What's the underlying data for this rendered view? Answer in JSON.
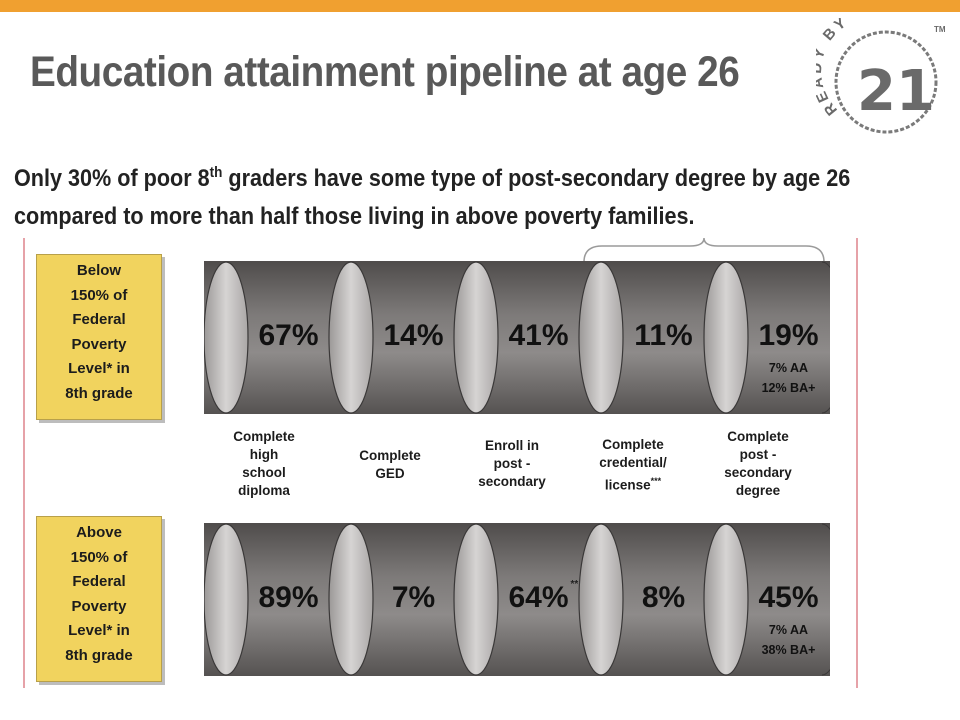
{
  "slide": {
    "title": "Education attainment pipeline at age 26",
    "subtitle_a": "Only 30% of poor 8",
    "subtitle_sup": "th",
    "subtitle_b": " graders have some type of post-secondary degree by age 26 compared to more than half those living in above poverty families."
  },
  "logo": {
    "word": "READY BY",
    "number": "21",
    "mark": "TM"
  },
  "colors": {
    "accent_bar": "#f0a030",
    "group_box": "#f1d35e",
    "cylinder": "#6e6b6a",
    "divider": "#e6a2a8"
  },
  "stages": [
    {
      "lines": "Complete\nhigh\nschool\ndiploma",
      "sup": ""
    },
    {
      "lines": "Complete\nGED",
      "sup": ""
    },
    {
      "lines": "Enroll in\npost -\nsecondary",
      "sup": ""
    },
    {
      "lines": "Complete\ncredential/\nlicense",
      "sup": "***"
    },
    {
      "lines": "Complete\npost -\nsecondary\ndegree",
      "sup": ""
    }
  ],
  "groups": [
    {
      "label": "Below\n150% of\nFederal\nPoverty\nLevel* in\n8th grade",
      "values": [
        {
          "pct": "67%",
          "value": 67
        },
        {
          "pct": "14%",
          "value": 14
        },
        {
          "pct": "41%",
          "value": 41
        },
        {
          "pct": "11%",
          "value": 11
        },
        {
          "pct": "19%",
          "value": 19,
          "detail": [
            "7% AA",
            "12% BA+"
          ]
        }
      ]
    },
    {
      "label": "Above\n150% of\nFederal\nPoverty\nLevel* in\n8th grade",
      "values": [
        {
          "pct": "89%",
          "value": 89
        },
        {
          "pct": "7%",
          "value": 7
        },
        {
          "pct": "64%",
          "value": 64,
          "mark": "**"
        },
        {
          "pct": "8%",
          "value": 8
        },
        {
          "pct": "45%",
          "value": 45,
          "detail": [
            "7% AA",
            "38% BA+"
          ]
        }
      ]
    }
  ]
}
